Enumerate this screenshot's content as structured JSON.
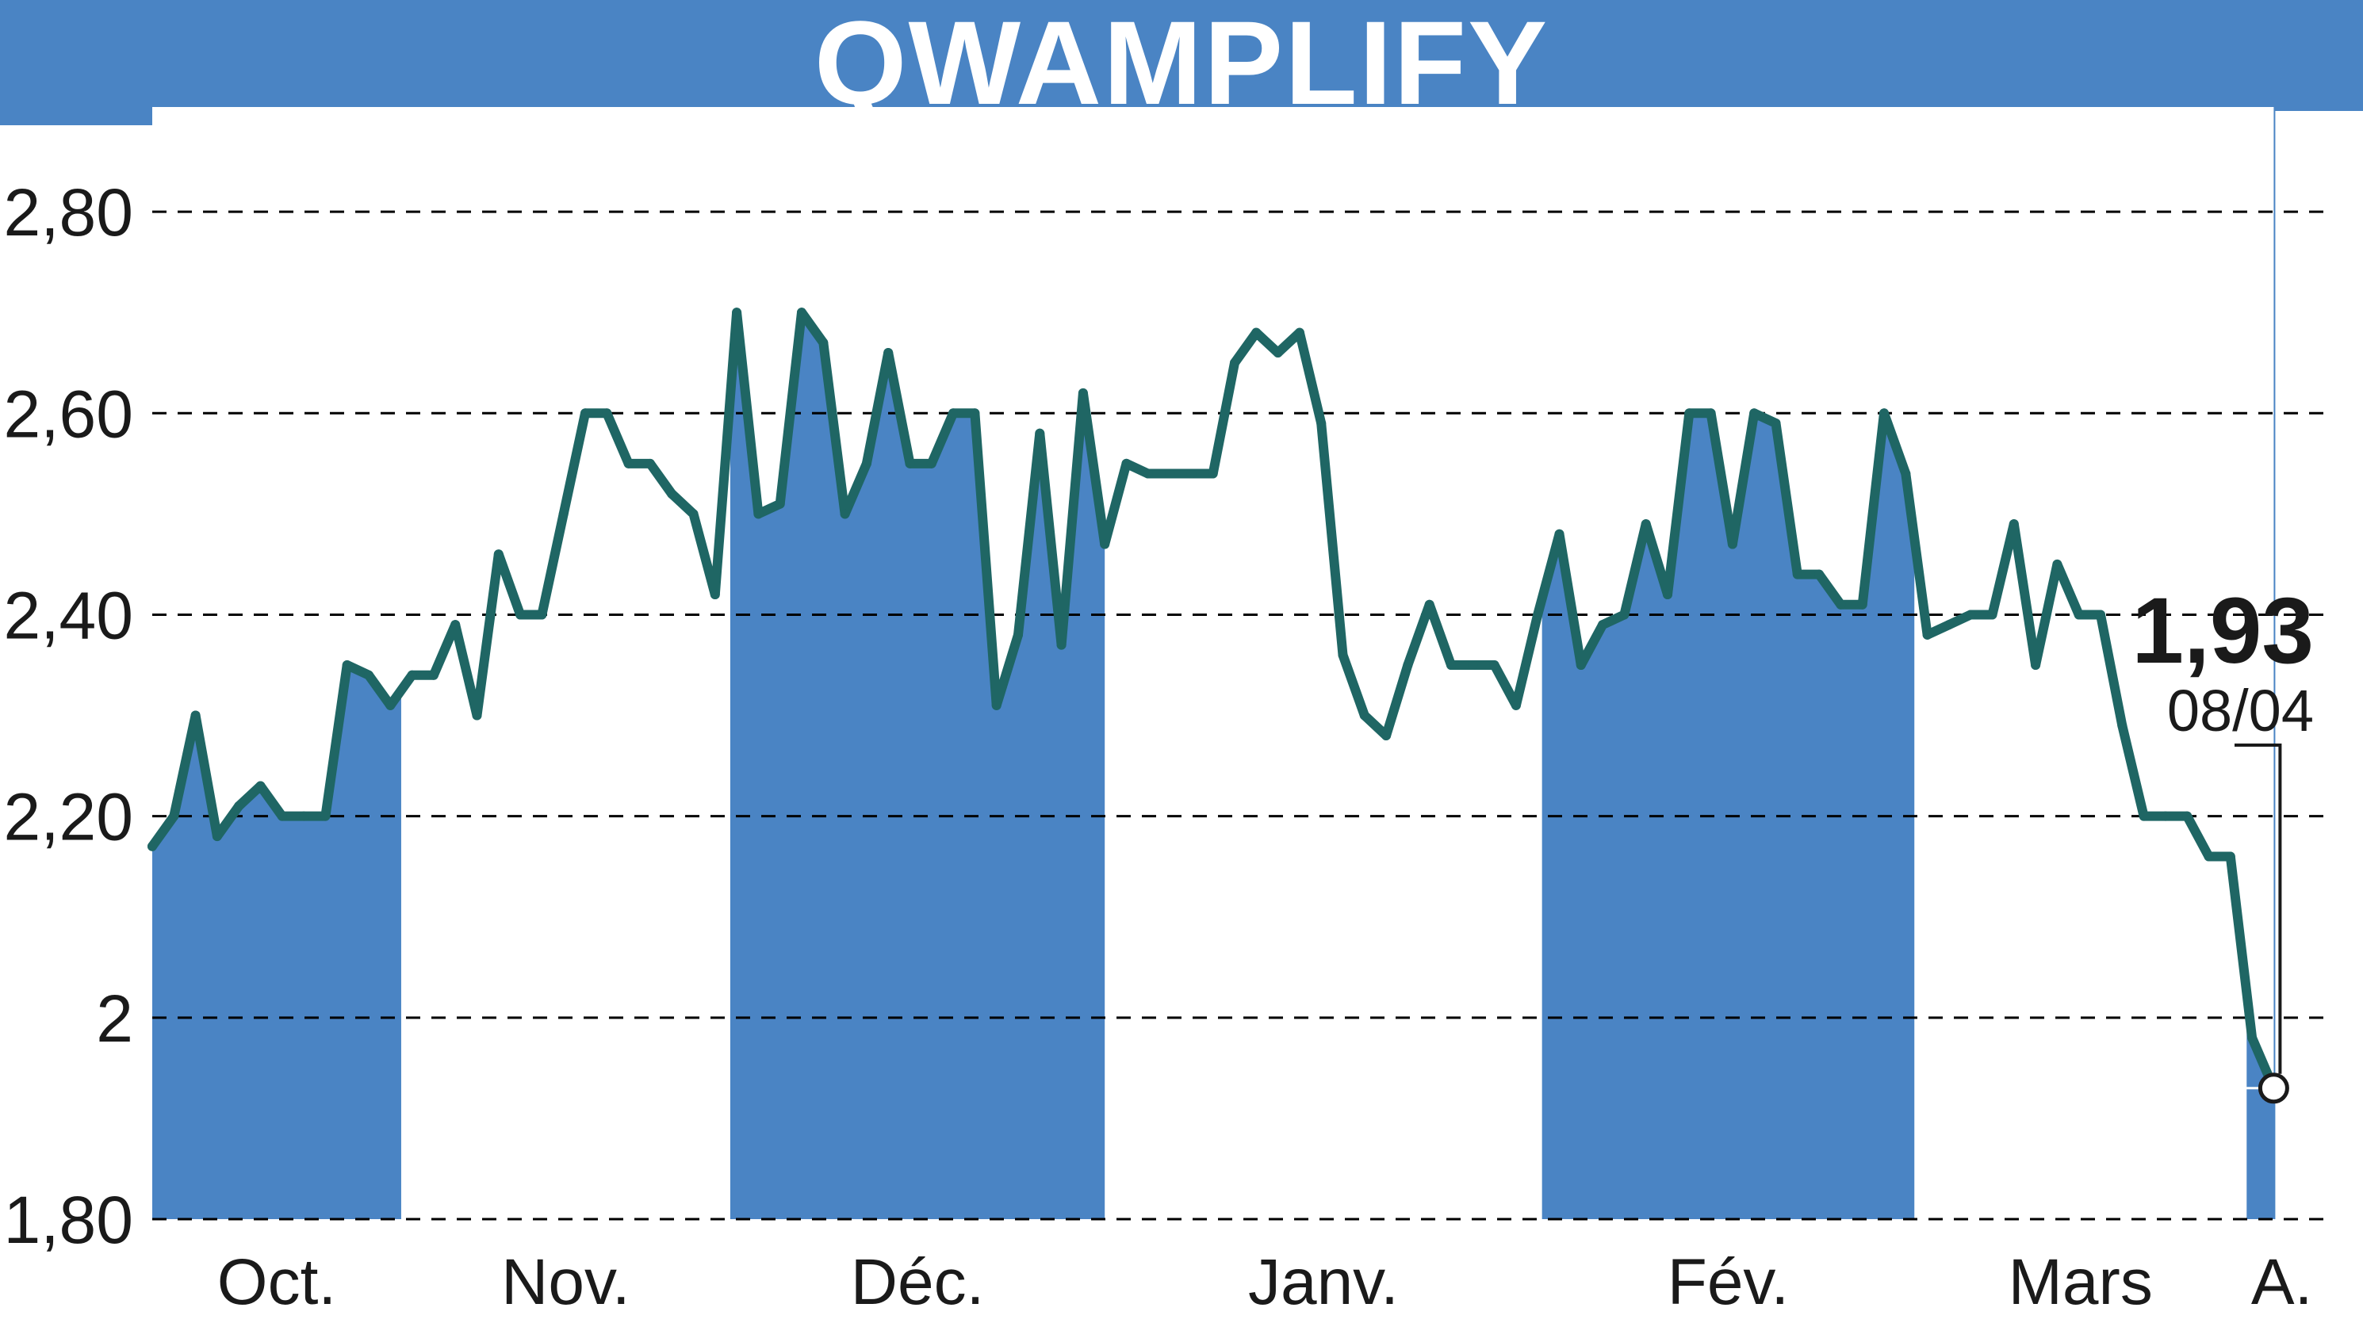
{
  "title": "QWAMPLIFY",
  "colors": {
    "band": "#4a84c4",
    "line": "#1f6664",
    "grid": "#000000",
    "text": "#1a1a1a",
    "background": "#ffffff"
  },
  "last_point": {
    "value": "1,93",
    "date": "08/04"
  },
  "chart_data": {
    "type": "line",
    "title": "QWAMPLIFY",
    "xlabel": "",
    "ylabel": "",
    "ylim": [
      1.8,
      2.9
    ],
    "yticks": [
      {
        "value": 1.8,
        "label": "1,80"
      },
      {
        "value": 2.0,
        "label": "2"
      },
      {
        "value": 2.2,
        "label": "2,20"
      },
      {
        "value": 2.4,
        "label": "2,40"
      },
      {
        "value": 2.6,
        "label": "2,60"
      },
      {
        "value": 2.8,
        "label": "2,80"
      }
    ],
    "grid": true,
    "xlim": [
      0,
      100
    ],
    "months": [
      {
        "label": "Oct.",
        "start": 0,
        "end": 11.5,
        "shaded": true
      },
      {
        "label": "Nov.",
        "start": 11.5,
        "end": 26.7,
        "shaded": false
      },
      {
        "label": "Déc.",
        "start": 26.7,
        "end": 44.0,
        "shaded": true
      },
      {
        "label": "Janv.",
        "start": 44.0,
        "end": 64.2,
        "shaded": false
      },
      {
        "label": "Fév.",
        "start": 64.2,
        "end": 81.4,
        "shaded": true
      },
      {
        "label": "Mars",
        "start": 81.4,
        "end": 96.75,
        "shaded": false
      },
      {
        "label": "A.",
        "start": 96.75,
        "end": 100,
        "shaded": true
      }
    ],
    "series": [
      {
        "values": [
          [
            0,
            2.17
          ],
          [
            1,
            2.2
          ],
          [
            2,
            2.3
          ],
          [
            3,
            2.18
          ],
          [
            4,
            2.21
          ],
          [
            5,
            2.23
          ],
          [
            6,
            2.2
          ],
          [
            7,
            2.2
          ],
          [
            8,
            2.2
          ],
          [
            9,
            2.35
          ],
          [
            10,
            2.34
          ],
          [
            11,
            2.31
          ],
          [
            12,
            2.34
          ],
          [
            13,
            2.34
          ],
          [
            14,
            2.39
          ],
          [
            15,
            2.3
          ],
          [
            16,
            2.46
          ],
          [
            17,
            2.4
          ],
          [
            18,
            2.4
          ],
          [
            19,
            2.5
          ],
          [
            20,
            2.6
          ],
          [
            21,
            2.6
          ],
          [
            22,
            2.55
          ],
          [
            23,
            2.55
          ],
          [
            24,
            2.52
          ],
          [
            25,
            2.5
          ],
          [
            26,
            2.42
          ],
          [
            27,
            2.7
          ],
          [
            28,
            2.5
          ],
          [
            29,
            2.51
          ],
          [
            30,
            2.7
          ],
          [
            31,
            2.67
          ],
          [
            32,
            2.5
          ],
          [
            33,
            2.55
          ],
          [
            34,
            2.66
          ],
          [
            35,
            2.55
          ],
          [
            36,
            2.55
          ],
          [
            37,
            2.6
          ],
          [
            38,
            2.6
          ],
          [
            39,
            2.31
          ],
          [
            40,
            2.38
          ],
          [
            41,
            2.58
          ],
          [
            42,
            2.37
          ],
          [
            43,
            2.62
          ],
          [
            44,
            2.47
          ],
          [
            45,
            2.55
          ],
          [
            46,
            2.54
          ],
          [
            47,
            2.54
          ],
          [
            48,
            2.54
          ],
          [
            49,
            2.54
          ],
          [
            50,
            2.65
          ],
          [
            51,
            2.68
          ],
          [
            52,
            2.66
          ],
          [
            53,
            2.68
          ],
          [
            54,
            2.59
          ],
          [
            55,
            2.36
          ],
          [
            56,
            2.3
          ],
          [
            57,
            2.28
          ],
          [
            58,
            2.35
          ],
          [
            59,
            2.41
          ],
          [
            60,
            2.35
          ],
          [
            61,
            2.35
          ],
          [
            62,
            2.35
          ],
          [
            63,
            2.31
          ],
          [
            64,
            2.4
          ],
          [
            65,
            2.48
          ],
          [
            66,
            2.35
          ],
          [
            67,
            2.39
          ],
          [
            68,
            2.4
          ],
          [
            69,
            2.49
          ],
          [
            70,
            2.42
          ],
          [
            71,
            2.6
          ],
          [
            72,
            2.6
          ],
          [
            73,
            2.47
          ],
          [
            74,
            2.6
          ],
          [
            75,
            2.59
          ],
          [
            76,
            2.44
          ],
          [
            77,
            2.44
          ],
          [
            78,
            2.41
          ],
          [
            79,
            2.41
          ],
          [
            80,
            2.6
          ],
          [
            81,
            2.54
          ],
          [
            82,
            2.38
          ],
          [
            83,
            2.39
          ],
          [
            84,
            2.4
          ],
          [
            85,
            2.4
          ],
          [
            86,
            2.49
          ],
          [
            87,
            2.35
          ],
          [
            88,
            2.45
          ],
          [
            89,
            2.4
          ],
          [
            90,
            2.4
          ],
          [
            91,
            2.29
          ],
          [
            92,
            2.2
          ],
          [
            93,
            2.2
          ],
          [
            94,
            2.2
          ],
          [
            95,
            2.16
          ],
          [
            96,
            2.16
          ],
          [
            97,
            1.98
          ],
          [
            98,
            1.93
          ]
        ]
      }
    ]
  }
}
